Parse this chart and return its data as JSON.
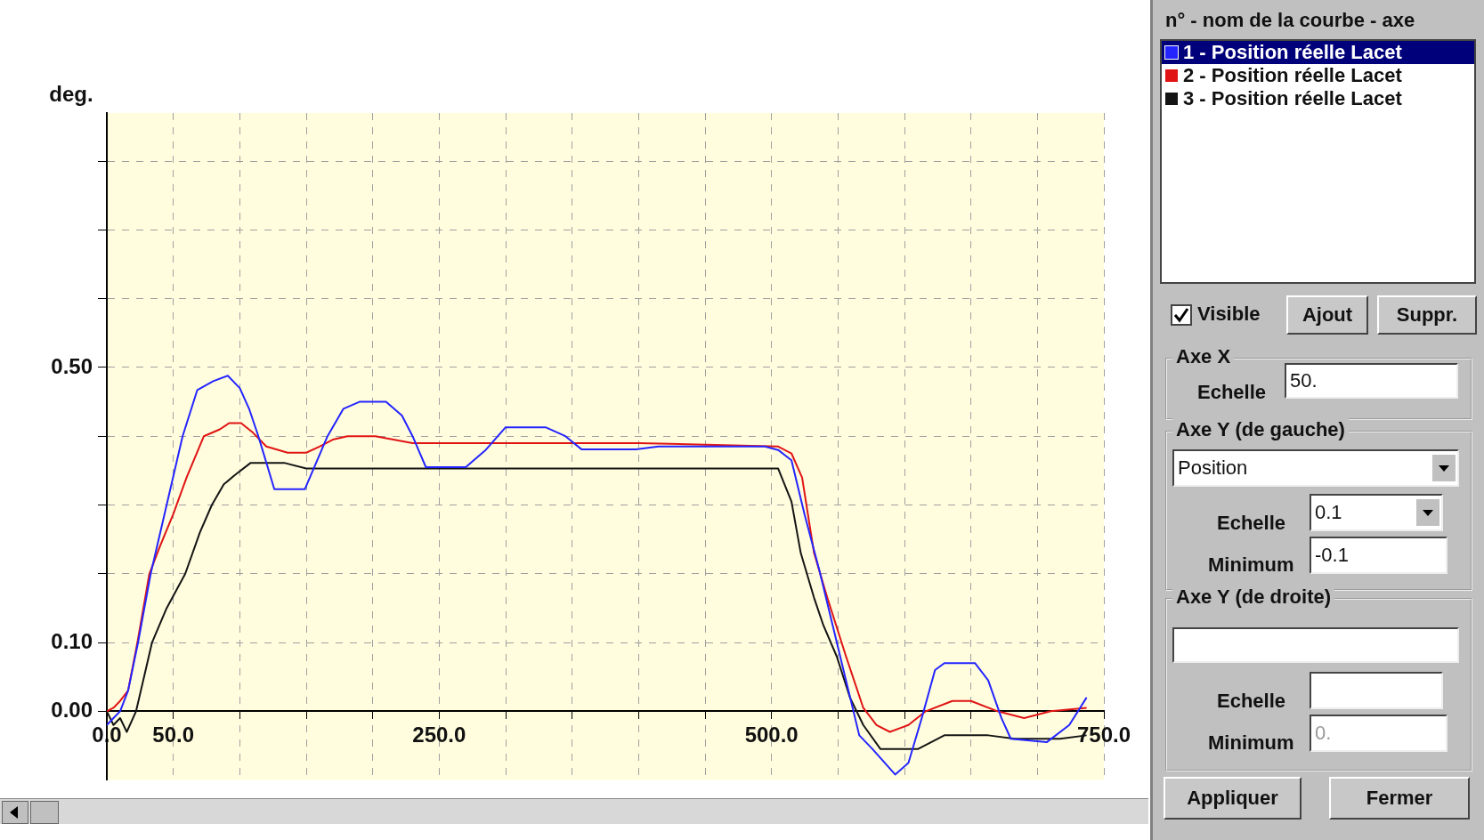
{
  "chart_data": {
    "type": "line",
    "ylabel": "deg.",
    "legend_title": "n° - nom de la courbe - axe",
    "legend": "right",
    "grid": true,
    "xlim": [
      0,
      750
    ],
    "ylim": [
      -0.1,
      0.87
    ],
    "xticks": [
      {
        "value": 0,
        "label": "0.0"
      },
      {
        "value": 50,
        "label": "50.0"
      },
      {
        "value": 100,
        "label": null
      },
      {
        "value": 150,
        "label": null
      },
      {
        "value": 200,
        "label": null
      },
      {
        "value": 250,
        "label": "250.0"
      },
      {
        "value": 300,
        "label": null
      },
      {
        "value": 350,
        "label": null
      },
      {
        "value": 400,
        "label": null
      },
      {
        "value": 450,
        "label": null
      },
      {
        "value": 500,
        "label": "500.0"
      },
      {
        "value": 550,
        "label": null
      },
      {
        "value": 600,
        "label": null
      },
      {
        "value": 650,
        "label": null
      },
      {
        "value": 700,
        "label": null
      },
      {
        "value": 750,
        "label": "750.0"
      }
    ],
    "yticks": [
      {
        "value": 0,
        "label": "0.00"
      },
      {
        "value": 0.1,
        "label": "0.10"
      },
      {
        "value": 0.2,
        "label": null
      },
      {
        "value": 0.3,
        "label": null
      },
      {
        "value": 0.4,
        "label": null
      },
      {
        "value": 0.5,
        "label": "0.50"
      },
      {
        "value": 0.6,
        "label": null
      },
      {
        "value": 0.7,
        "label": null
      },
      {
        "value": 0.8,
        "label": null
      }
    ],
    "series": [
      {
        "name": "1 - Position réelle Lacet",
        "color": "#2424ff",
        "x": [
          0,
          5,
          10,
          16,
          23.5,
          33,
          45,
          57,
          68,
          80,
          91,
          100,
          107,
          114,
          126,
          149,
          166,
          178,
          190,
          210,
          222,
          230,
          240,
          270,
          285,
          300,
          330,
          345,
          357,
          398,
          415,
          495,
          505,
          515,
          525,
          536,
          546,
          556,
          566,
          576,
          593,
          603,
          613,
          623,
          630,
          653,
          663,
          673,
          680,
          707,
          724,
          737
        ],
        "values": [
          -0.02,
          -0.01,
          0.0,
          0.03,
          0.1,
          0.2,
          0.3,
          0.4,
          0.467,
          0.48,
          0.488,
          0.47,
          0.44,
          0.4,
          0.323,
          0.323,
          0.4,
          0.44,
          0.45,
          0.45,
          0.43,
          0.4,
          0.355,
          0.355,
          0.38,
          0.413,
          0.413,
          0.4,
          0.381,
          0.381,
          0.385,
          0.385,
          0.38,
          0.365,
          0.285,
          0.205,
          0.125,
          0.045,
          -0.035,
          -0.055,
          -0.092,
          -0.075,
          -0.01,
          0.06,
          0.07,
          0.07,
          0.045,
          -0.01,
          -0.04,
          -0.045,
          -0.02,
          0.02
        ]
      },
      {
        "name": "2 - Position réelle Lacet",
        "color": "#e01414",
        "x": [
          0,
          5,
          10,
          16,
          23,
          32,
          40,
          50,
          60,
          73,
          85,
          92,
          101,
          110,
          120,
          136,
          150,
          160,
          170,
          181,
          202,
          230,
          260,
          300,
          400,
          505,
          515,
          523,
          532,
          542,
          556,
          569,
          579,
          589,
          603,
          616,
          636,
          650,
          670,
          690,
          710,
          737
        ],
        "values": [
          0.0,
          0.005,
          0.015,
          0.03,
          0.1,
          0.2,
          0.24,
          0.287,
          0.34,
          0.4,
          0.41,
          0.419,
          0.419,
          0.405,
          0.385,
          0.376,
          0.376,
          0.385,
          0.395,
          0.4,
          0.4,
          0.39,
          0.39,
          0.39,
          0.39,
          0.385,
          0.375,
          0.34,
          0.23,
          0.165,
          0.08,
          0.005,
          -0.02,
          -0.03,
          -0.02,
          0.0,
          0.015,
          0.015,
          0.0,
          -0.01,
          0.0,
          0.005
        ]
      },
      {
        "name": "3 - Position réelle Lacet",
        "color": "#141414",
        "x": [
          0,
          5,
          10,
          15,
          22,
          28,
          34,
          45,
          59,
          70,
          79,
          88,
          96,
          108,
          134,
          150,
          505,
          515,
          522,
          532,
          539,
          549,
          559,
          569,
          582,
          610,
          630,
          663,
          683,
          717,
          737
        ],
        "values": [
          0.0,
          -0.02,
          -0.01,
          -0.03,
          0.0,
          0.05,
          0.1,
          0.15,
          0.2,
          0.26,
          0.3,
          0.33,
          0.343,
          0.361,
          0.361,
          0.353,
          0.353,
          0.305,
          0.23,
          0.165,
          0.125,
          0.08,
          0.02,
          -0.02,
          -0.055,
          -0.055,
          -0.035,
          -0.035,
          -0.04,
          -0.04,
          -0.035
        ]
      }
    ],
    "annotations": [
      "Visible",
      "Ajout",
      "Suppr.",
      "Axe X",
      "Echelle",
      "50.",
      "Axe Y (de gauche)",
      "Position",
      "Echelle",
      "0.1",
      "Minimum",
      "-0.1",
      "Axe Y (de droite)",
      "Echelle",
      "Minimum",
      "0.",
      "Appliquer",
      "Fermer"
    ]
  }
}
